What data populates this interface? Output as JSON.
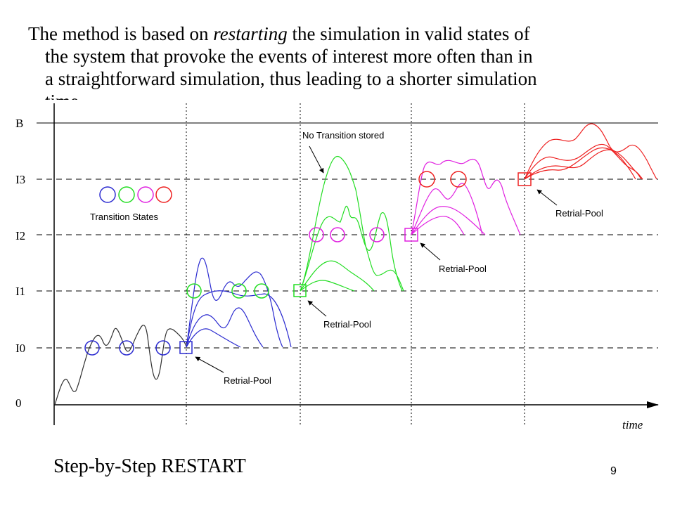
{
  "slide": {
    "paragraph": {
      "part1": "The method is based on ",
      "emphasis": "restarting",
      "part2": " the simulation in valid states of",
      "line2": "the system that provoke the events of interest more often than in",
      "line3": "a straightforward simulation, thus leading to a shorter simulation",
      "line4_partial": "time."
    },
    "caption": "Step-by-Step RESTART",
    "page_number": "9"
  },
  "diagram": {
    "y_levels": [
      "B",
      "I3",
      "I2",
      "I1",
      "I0",
      "0"
    ],
    "x_axis_label": "time",
    "legend_label": "Transition States",
    "annotations": {
      "no_transition": "No Transition stored",
      "retrial_pool": "Retrial-Pool"
    },
    "colors": {
      "phase0": "#303030",
      "phase1": "#2b2bd0",
      "phase2": "#22dd22",
      "phase3": "#e020e0",
      "phase4": "#ee2020"
    }
  }
}
